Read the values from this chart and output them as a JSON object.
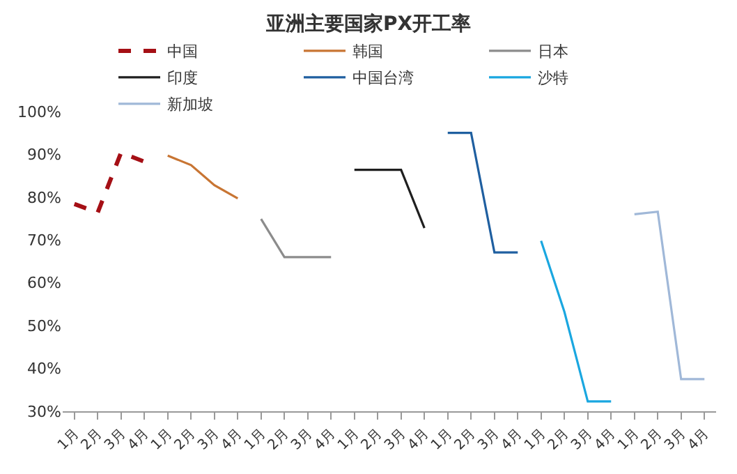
{
  "chart_data": {
    "type": "line",
    "title": "亚洲主要国家PX开工率",
    "categories": [
      "1月",
      "2月",
      "3月",
      "4月",
      "1月",
      "2月",
      "3月",
      "4月",
      "1月",
      "2月",
      "3月",
      "4月",
      "1月",
      "2月",
      "3月",
      "4月",
      "1月",
      "2月",
      "3月",
      "4月",
      "1月",
      "2月",
      "3月",
      "4月",
      "1月",
      "2月",
      "3月",
      "4月"
    ],
    "series": [
      {
        "name": "中国",
        "color": "#a50f15",
        "line_style": "dashed",
        "values": [
          78.4,
          76.4,
          90.4,
          88.3,
          null,
          null,
          null,
          null,
          null,
          null,
          null,
          null,
          null,
          null,
          null,
          null,
          null,
          null,
          null,
          null,
          null,
          null,
          null,
          null,
          null,
          null,
          null,
          null
        ]
      },
      {
        "name": "韩国",
        "color": "#c87533",
        "values": [
          null,
          null,
          null,
          null,
          89.7,
          87.5,
          82.8,
          79.7,
          null,
          null,
          null,
          null,
          null,
          null,
          null,
          null,
          null,
          null,
          null,
          null,
          null,
          null,
          null,
          null,
          null,
          null,
          null,
          null
        ]
      },
      {
        "name": "日本",
        "color": "#8c8c8c",
        "values": [
          null,
          null,
          null,
          null,
          null,
          null,
          null,
          null,
          74.9,
          66,
          66,
          66,
          null,
          null,
          null,
          null,
          null,
          null,
          null,
          null,
          null,
          null,
          null,
          null,
          null,
          null,
          null,
          null
        ]
      },
      {
        "name": "印度",
        "color": "#1f1f1f",
        "values": [
          null,
          null,
          null,
          null,
          null,
          null,
          null,
          null,
          null,
          null,
          null,
          null,
          86.4,
          86.4,
          86.4,
          72.8,
          null,
          null,
          null,
          null,
          null,
          null,
          null,
          null,
          null,
          null,
          null,
          null
        ]
      },
      {
        "name": "中国台湾",
        "color": "#1f5fa0",
        "values": [
          null,
          null,
          null,
          null,
          null,
          null,
          null,
          null,
          null,
          null,
          null,
          null,
          null,
          null,
          null,
          null,
          95,
          95,
          67.1,
          67.1,
          null,
          null,
          null,
          null,
          null,
          null,
          null,
          null
        ]
      },
      {
        "name": "沙特",
        "color": "#1aa7e0",
        "values": [
          null,
          null,
          null,
          null,
          null,
          null,
          null,
          null,
          null,
          null,
          null,
          null,
          null,
          null,
          null,
          null,
          null,
          null,
          null,
          null,
          69.8,
          53.2,
          32.3,
          32.3,
          null,
          null,
          null,
          null
        ]
      },
      {
        "name": "新加坡",
        "color": "#a0b8d8",
        "values": [
          null,
          null,
          null,
          null,
          null,
          null,
          null,
          null,
          null,
          null,
          null,
          null,
          null,
          null,
          null,
          null,
          null,
          null,
          null,
          null,
          null,
          null,
          null,
          null,
          76,
          76.6,
          37.5,
          37.5
        ]
      }
    ],
    "ylim": [
      30,
      100
    ],
    "yticks": [
      {
        "value": 30,
        "label": "30%"
      },
      {
        "value": 40,
        "label": "40%"
      },
      {
        "value": 50,
        "label": "50%"
      },
      {
        "value": 60,
        "label": "60%"
      },
      {
        "value": 70,
        "label": "70%"
      },
      {
        "value": 80,
        "label": "80%"
      },
      {
        "value": 90,
        "label": "90%"
      },
      {
        "value": 100,
        "label": "100%"
      }
    ],
    "legend": "top",
    "grid": false,
    "line_style": "solid",
    "marker": "none"
  }
}
